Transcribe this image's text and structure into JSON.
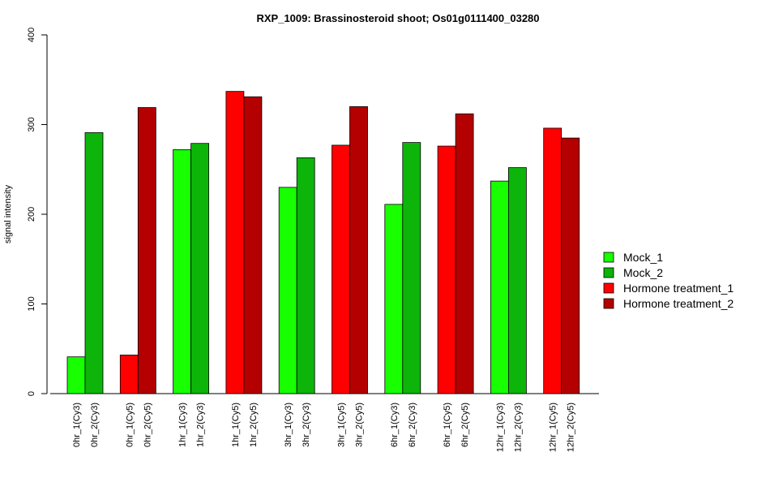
{
  "chart_data": {
    "type": "bar",
    "title": "RXP_1009: Brassinosteroid shoot; Os01g0111400_03280",
    "xlabel": "",
    "ylabel": "signal intensity",
    "ylim": [
      0,
      400
    ],
    "yticks": [
      "0",
      "100",
      "200",
      "300",
      "400"
    ],
    "grid": false,
    "legend_position": "right",
    "groups": [
      {
        "labels": [
          "0hr_1(Cy3)",
          "0hr_2(Cy3)"
        ],
        "series": [
          "Mock_1",
          "Mock_2"
        ],
        "values": [
          41,
          291
        ]
      },
      {
        "labels": [
          "0hr_1(Cy5)",
          "0hr_2(Cy5)"
        ],
        "series": [
          "Hormone treatment_1",
          "Hormone treatment_2"
        ],
        "values": [
          43,
          319
        ]
      },
      {
        "labels": [
          "1hr_1(Cy3)",
          "1hr_2(Cy3)"
        ],
        "series": [
          "Mock_1",
          "Mock_2"
        ],
        "values": [
          272,
          279
        ]
      },
      {
        "labels": [
          "1hr_1(Cy5)",
          "1hr_2(Cy5)"
        ],
        "series": [
          "Hormone treatment_1",
          "Hormone treatment_2"
        ],
        "values": [
          337,
          331
        ]
      },
      {
        "labels": [
          "3hr_1(Cy3)",
          "3hr_2(Cy3)"
        ],
        "series": [
          "Mock_1",
          "Mock_2"
        ],
        "values": [
          230,
          263
        ]
      },
      {
        "labels": [
          "3hr_1(Cy5)",
          "3hr_2(Cy5)"
        ],
        "series": [
          "Hormone treatment_1",
          "Hormone treatment_2"
        ],
        "values": [
          277,
          320
        ]
      },
      {
        "labels": [
          "6hr_1(Cy3)",
          "6hr_2(Cy3)"
        ],
        "series": [
          "Mock_1",
          "Mock_2"
        ],
        "values": [
          211,
          280
        ]
      },
      {
        "labels": [
          "6hr_1(Cy5)",
          "6hr_2(Cy5)"
        ],
        "series": [
          "Hormone treatment_1",
          "Hormone treatment_2"
        ],
        "values": [
          276,
          312
        ]
      },
      {
        "labels": [
          "12hr_1(Cy3)",
          "12hr_2(Cy3)"
        ],
        "series": [
          "Mock_1",
          "Mock_2"
        ],
        "values": [
          237,
          252
        ]
      },
      {
        "labels": [
          "12hr_1(Cy5)",
          "12hr_2(Cy5)"
        ],
        "series": [
          "Hormone treatment_1",
          "Hormone treatment_2"
        ],
        "values": [
          296,
          285
        ]
      }
    ],
    "legend": [
      {
        "name": "Mock_1",
        "color": "#17ff00"
      },
      {
        "name": "Mock_2",
        "color": "#0db40a"
      },
      {
        "name": "Hormone treatment_1",
        "color": "#ff0000"
      },
      {
        "name": "Hormone treatment_2",
        "color": "#b40000"
      }
    ]
  }
}
